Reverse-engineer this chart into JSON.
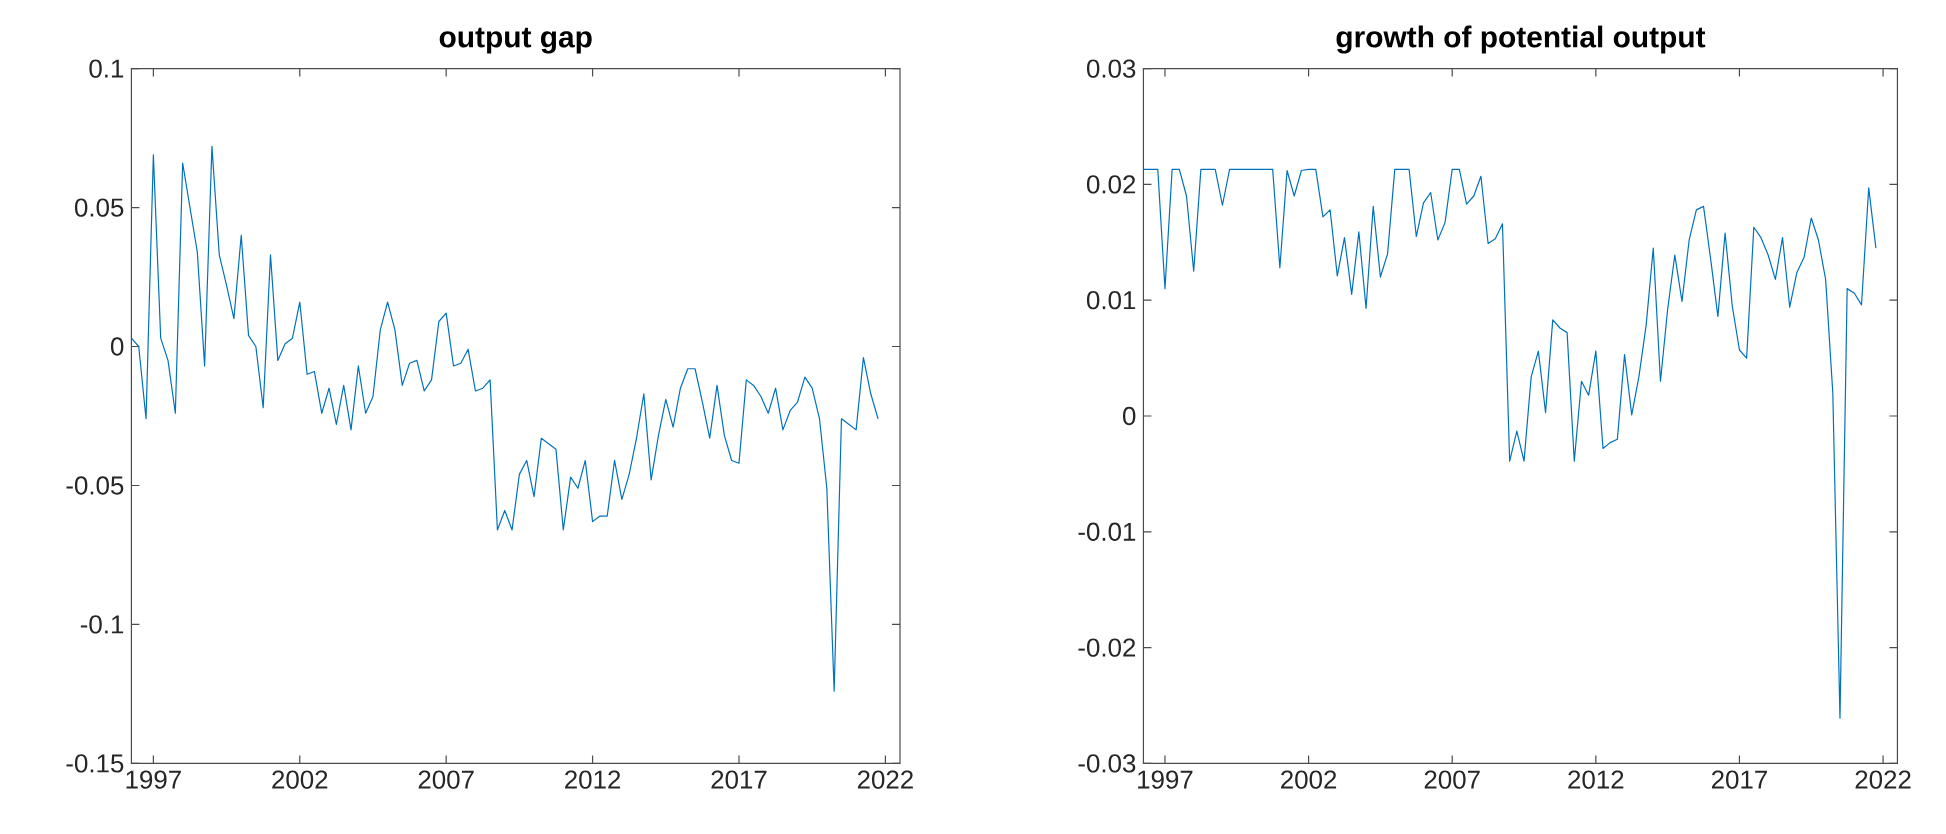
{
  "chart_data": [
    {
      "type": "line",
      "title": "output gap",
      "x": [
        1996.25,
        1996.5,
        1996.75,
        1997,
        1997.25,
        1997.5,
        1997.75,
        1998,
        1998.25,
        1998.5,
        1998.75,
        1999,
        1999.25,
        1999.5,
        1999.75,
        2000,
        2000.25,
        2000.5,
        2000.75,
        2001,
        2001.25,
        2001.5,
        2001.75,
        2002,
        2002.25,
        2002.5,
        2002.75,
        2003,
        2003.25,
        2003.5,
        2003.75,
        2004,
        2004.25,
        2004.5,
        2004.75,
        2005,
        2005.25,
        2005.5,
        2005.75,
        2006,
        2006.25,
        2006.5,
        2006.75,
        2007,
        2007.25,
        2007.5,
        2007.75,
        2008,
        2008.25,
        2008.5,
        2008.75,
        2009,
        2009.25,
        2009.5,
        2009.75,
        2010,
        2010.25,
        2010.5,
        2010.75,
        2011,
        2011.25,
        2011.5,
        2011.75,
        2012,
        2012.25,
        2012.5,
        2012.75,
        2013,
        2013.25,
        2013.5,
        2013.75,
        2014,
        2014.25,
        2014.5,
        2014.75,
        2015,
        2015.25,
        2015.5,
        2015.75,
        2016,
        2016.25,
        2016.5,
        2016.75,
        2017,
        2017.25,
        2017.5,
        2017.75,
        2018,
        2018.25,
        2018.5,
        2018.75,
        2019,
        2019.25,
        2019.5,
        2019.75,
        2020,
        2020.25,
        2020.5,
        2020.75,
        2021,
        2021.25,
        2021.5,
        2021.75
      ],
      "series": [
        {
          "color": "#0072bd",
          "values": [
            0.003,
            0.0,
            -0.026,
            0.069,
            0.003,
            -0.005,
            -0.024,
            0.066,
            0.05,
            0.034,
            -0.007,
            0.072,
            0.033,
            0.022,
            0.01,
            0.04,
            0.004,
            0.0,
            -0.022,
            0.033,
            -0.005,
            0.001,
            0.003,
            0.016,
            -0.01,
            -0.009,
            -0.024,
            -0.015,
            -0.028,
            -0.014,
            -0.03,
            -0.007,
            -0.024,
            -0.018,
            0.006,
            0.016,
            0.006,
            -0.014,
            -0.006,
            -0.005,
            -0.016,
            -0.012,
            0.009,
            0.012,
            -0.007,
            -0.006,
            -0.001,
            -0.016,
            -0.015,
            -0.012,
            -0.066,
            -0.059,
            -0.066,
            -0.046,
            -0.041,
            -0.054,
            -0.033,
            -0.035,
            -0.037,
            -0.066,
            -0.047,
            -0.051,
            -0.041,
            -0.063,
            -0.061,
            -0.061,
            -0.041,
            -0.055,
            -0.046,
            -0.033,
            -0.017,
            -0.048,
            -0.032,
            -0.019,
            -0.029,
            -0.015,
            -0.008,
            -0.008,
            -0.02,
            -0.033,
            -0.014,
            -0.032,
            -0.041,
            -0.042,
            -0.012,
            -0.014,
            -0.018,
            -0.024,
            -0.015,
            -0.03,
            -0.023,
            -0.02,
            -0.011,
            -0.015,
            -0.026,
            -0.051,
            -0.124,
            -0.026,
            -0.028,
            -0.03,
            -0.004,
            -0.017,
            -0.026
          ]
        }
      ],
      "xlim": [
        1996.25,
        2022.5
      ],
      "xticks": [
        1997,
        2002,
        2007,
        2012,
        2017,
        2022
      ],
      "ylim": [
        -0.15,
        0.1
      ],
      "yticks": [
        -0.15,
        -0.1,
        -0.05,
        0,
        0.05,
        0.1
      ]
    },
    {
      "type": "line",
      "title": "growth of potential output",
      "x": [
        1996.25,
        1996.5,
        1996.75,
        1997,
        1997.25,
        1997.5,
        1997.75,
        1998,
        1998.25,
        1998.5,
        1998.75,
        1999,
        1999.25,
        1999.5,
        1999.75,
        2000,
        2000.25,
        2000.5,
        2000.75,
        2001,
        2001.25,
        2001.5,
        2001.75,
        2002,
        2002.25,
        2002.5,
        2002.75,
        2003,
        2003.25,
        2003.5,
        2003.75,
        2004,
        2004.25,
        2004.5,
        2004.75,
        2005,
        2005.25,
        2005.5,
        2005.75,
        2006,
        2006.25,
        2006.5,
        2006.75,
        2007,
        2007.25,
        2007.5,
        2007.75,
        2008,
        2008.25,
        2008.5,
        2008.75,
        2009,
        2009.25,
        2009.5,
        2009.75,
        2010,
        2010.25,
        2010.5,
        2010.75,
        2011,
        2011.25,
        2011.5,
        2011.75,
        2012,
        2012.25,
        2012.5,
        2012.75,
        2013,
        2013.25,
        2013.5,
        2013.75,
        2014,
        2014.25,
        2014.5,
        2014.75,
        2015,
        2015.25,
        2015.5,
        2015.75,
        2016,
        2016.25,
        2016.5,
        2016.75,
        2017,
        2017.25,
        2017.5,
        2017.75,
        2018,
        2018.25,
        2018.5,
        2018.75,
        2019,
        2019.25,
        2019.5,
        2019.75,
        2020,
        2020.25,
        2020.5,
        2020.75,
        2021,
        2021.25,
        2021.5,
        2021.75
      ],
      "series": [
        {
          "color": "#0072bd",
          "values": [
            0.0213,
            0.0213,
            0.0213,
            0.011,
            0.0213,
            0.0213,
            0.019,
            0.0125,
            0.0213,
            0.0213,
            0.0213,
            0.0182,
            0.0213,
            0.0213,
            0.0213,
            0.0213,
            0.0213,
            0.0213,
            0.0213,
            0.0128,
            0.0212,
            0.019,
            0.0212,
            0.0213,
            0.0213,
            0.0172,
            0.0178,
            0.0121,
            0.0154,
            0.0105,
            0.0159,
            0.0093,
            0.0181,
            0.012,
            0.014,
            0.0213,
            0.0213,
            0.0213,
            0.0155,
            0.0184,
            0.0193,
            0.0152,
            0.0167,
            0.0213,
            0.0213,
            0.0183,
            0.019,
            0.0207,
            0.0149,
            0.0153,
            0.0166,
            -0.0039,
            -0.0013,
            -0.0039,
            0.0034,
            0.0056,
            0.0003,
            0.0083,
            0.0076,
            0.0072,
            -0.0039,
            0.003,
            0.0018,
            0.0056,
            -0.0028,
            -0.0023,
            -0.002,
            0.0053,
            0.0001,
            0.0034,
            0.0078,
            0.0145,
            0.003,
            0.0092,
            0.0139,
            0.0099,
            0.0152,
            0.0178,
            0.0181,
            0.0135,
            0.0086,
            0.0158,
            0.0095,
            0.0057,
            0.005,
            0.0163,
            0.0154,
            0.0139,
            0.0118,
            0.0154,
            0.0094,
            0.0124,
            0.0137,
            0.0171,
            0.0152,
            0.0118,
            0.002,
            -0.0261,
            0.011,
            0.0106,
            0.0096,
            0.0197,
            0.0145
          ]
        }
      ],
      "xlim": [
        1996.25,
        2022.5
      ],
      "xticks": [
        1997,
        2002,
        2007,
        2012,
        2017,
        2022
      ],
      "ylim": [
        -0.03,
        0.03
      ],
      "yticks": [
        -0.03,
        -0.02,
        -0.01,
        0,
        0.01,
        0.02,
        0.03
      ]
    }
  ]
}
